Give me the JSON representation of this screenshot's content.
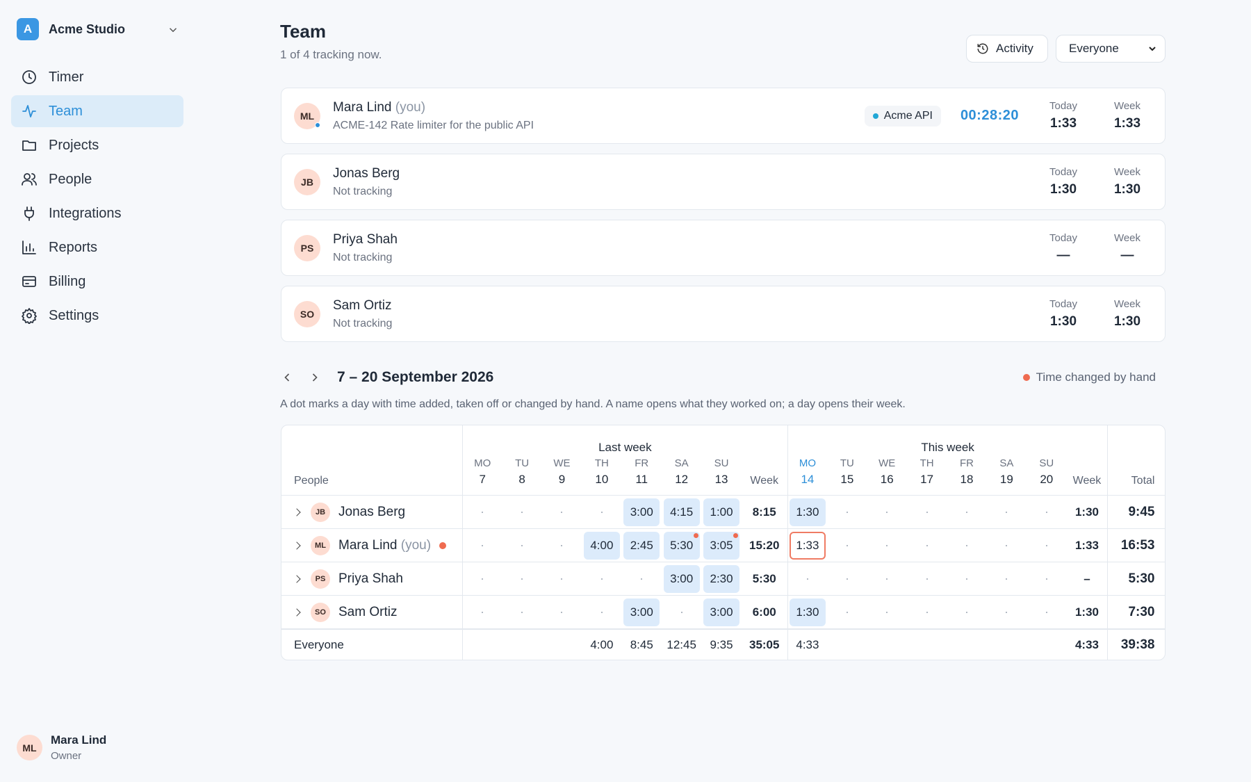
{
  "sidebar": {
    "workspace": {
      "initial": "A",
      "name": "Acme Studio"
    },
    "nav": [
      "Timer",
      "Team",
      "Projects",
      "People",
      "Integrations",
      "Reports",
      "Billing",
      "Settings"
    ],
    "active": 1,
    "user": {
      "initials": "ML",
      "name": "Mara Lind",
      "role": "Owner"
    }
  },
  "header": {
    "title": "Team",
    "subtitle": "1 of 4 tracking now.",
    "activity": "Activity",
    "filter": "Everyone"
  },
  "card_labels": {
    "today": "Today",
    "week": "Week"
  },
  "members": [
    {
      "initials": "ML",
      "name": "Mara Lind",
      "you": "(you)",
      "status": "ACME-142 Rate limiter for the public API",
      "project": "Acme API",
      "timer": "00:28:20",
      "today": "1:33",
      "week": "1:33",
      "online": true
    },
    {
      "initials": "JB",
      "name": "Jonas Berg",
      "status": "Not tracking",
      "today": "1:30",
      "week": "1:30"
    },
    {
      "initials": "PS",
      "name": "Priya Shah",
      "status": "Not tracking",
      "today": "—",
      "week": "—"
    },
    {
      "initials": "SO",
      "name": "Sam Ortiz",
      "status": "Not tracking",
      "today": "1:30",
      "week": "1:30"
    }
  ],
  "period": {
    "title": "7 – 20 September 2026",
    "legend": "Time changed by hand",
    "note": "A dot marks a day with time added, taken off or changed by hand. A name opens what they worked on; a day opens their week."
  },
  "table": {
    "people_label": "People",
    "total_label": "Total",
    "today": [
      1,
      0
    ],
    "groups": [
      {
        "label": "Last week",
        "week_label": "Week",
        "days": [
          {
            "dow": "MO",
            "date": "7"
          },
          {
            "dow": "TU",
            "date": "8"
          },
          {
            "dow": "WE",
            "date": "9"
          },
          {
            "dow": "TH",
            "date": "10"
          },
          {
            "dow": "FR",
            "date": "11"
          },
          {
            "dow": "SA",
            "date": "12"
          },
          {
            "dow": "SU",
            "date": "13"
          }
        ]
      },
      {
        "label": "This week",
        "week_label": "Week",
        "days": [
          {
            "dow": "MO",
            "date": "14"
          },
          {
            "dow": "TU",
            "date": "15"
          },
          {
            "dow": "WE",
            "date": "16"
          },
          {
            "dow": "TH",
            "date": "17"
          },
          {
            "dow": "FR",
            "date": "18"
          },
          {
            "dow": "SA",
            "date": "19"
          },
          {
            "dow": "SU",
            "date": "20"
          }
        ]
      }
    ],
    "rows": [
      {
        "initials": "JB",
        "name": "Jonas Berg",
        "days": [
          [
            null,
            null,
            null,
            null,
            "3:00",
            "4:15",
            "1:00"
          ],
          [
            "1:30",
            null,
            null,
            null,
            null,
            null,
            null
          ]
        ],
        "weeks": [
          "8:15",
          "1:30"
        ],
        "total": "9:45"
      },
      {
        "initials": "ML",
        "name": "Mara Lind",
        "you": "(you)",
        "edited": true,
        "changed": [
          [
            0,
            5
          ],
          [
            0,
            6
          ]
        ],
        "selected": [
          1,
          0
        ],
        "days": [
          [
            null,
            null,
            null,
            "4:00",
            "2:45",
            "5:30",
            "3:05"
          ],
          [
            "1:33",
            null,
            null,
            null,
            null,
            null,
            null
          ]
        ],
        "weeks": [
          "15:20",
          "1:33"
        ],
        "total": "16:53"
      },
      {
        "initials": "PS",
        "name": "Priya Shah",
        "days": [
          [
            null,
            null,
            null,
            null,
            null,
            "3:00",
            "2:30"
          ],
          [
            null,
            null,
            null,
            null,
            null,
            null,
            null
          ]
        ],
        "weeks": [
          "5:30",
          "–"
        ],
        "total": "5:30"
      },
      {
        "initials": "SO",
        "name": "Sam Ortiz",
        "days": [
          [
            null,
            null,
            null,
            null,
            "3:00",
            null,
            "3:00"
          ],
          [
            "1:30",
            null,
            null,
            null,
            null,
            null,
            null
          ]
        ],
        "weeks": [
          "6:00",
          "1:30"
        ],
        "total": "7:30"
      }
    ],
    "footer": {
      "label": "Everyone",
      "days": [
        [
          null,
          null,
          null,
          "4:00",
          "8:45",
          "12:45",
          "9:35"
        ],
        [
          "4:33",
          null,
          null,
          null,
          null,
          null,
          null
        ]
      ],
      "weeks": [
        "35:05",
        "4:33"
      ],
      "total": "39:38"
    }
  }
}
